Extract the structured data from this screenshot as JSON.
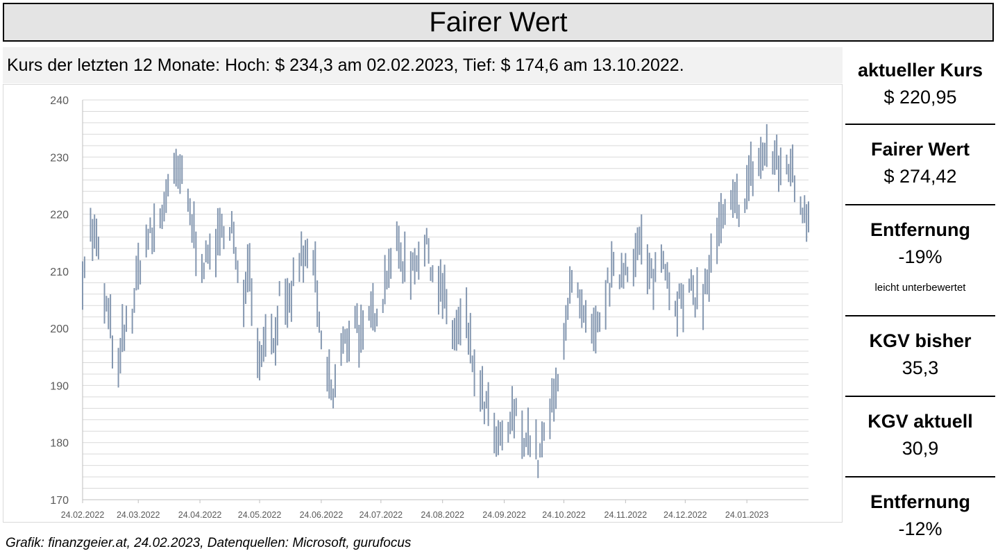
{
  "title": "Fairer Wert",
  "subtitle": "Kurs der letzten 12 Monate: Hoch: $ 234,3 am 02.02.2023, Tief: $ 174,6 am 13.10.2022.",
  "footer": "Grafik: finanzgeier.at, 24.02.2023, Datenquellen: Microsoft, gurufocus",
  "sidebar": {
    "current_price_label": "aktueller Kurs",
    "current_price_value": "$ 220,95",
    "fair_value_label": "Fairer Wert",
    "fair_value_value": "$ 274,42",
    "distance1_label": "Entfernung",
    "distance1_value": "-19%",
    "distance1_note": "leicht unterbewertet",
    "pe_trailing_label": "KGV bisher",
    "pe_trailing_value": "35,3",
    "pe_forward_label": "KGV aktuell",
    "pe_forward_value": "30,9",
    "distance2_label": "Entfernung",
    "distance2_value": "-12%"
  },
  "colors": {
    "bar": "#8497b0",
    "grid": "#d9d9d9",
    "axis": "#bfbfbf",
    "tick_text": "#595959",
    "title_bg": "#e4e4e4",
    "subtitle_bg": "#f2f2f2"
  },
  "chart_data": {
    "type": "bar",
    "subtype": "high-low range (daily)",
    "ylim": [
      170,
      240
    ],
    "y_ticks": [
      170,
      180,
      190,
      200,
      210,
      220,
      230,
      240
    ],
    "x_tick_labels": [
      "24.02.2022",
      "24.03.2022",
      "24.04.2022",
      "24.05.2022",
      "24.06.2022",
      "24.07.2022",
      "24.08.2022",
      "24.09.2022",
      "24.10.2022",
      "24.11.2022",
      "24.12.2022",
      "24.01.2023"
    ],
    "grid": "horizontal, every 2",
    "anchor_points": [
      [
        "24.02.2022",
        210
      ],
      [
        "28.02.2022",
        217
      ],
      [
        "03.03.2022",
        215
      ],
      [
        "07.03.2022",
        205
      ],
      [
        "10.03.2022",
        200
      ],
      [
        "14.03.2022",
        191
      ],
      [
        "16.03.2022",
        198
      ],
      [
        "21.03.2022",
        203
      ],
      [
        "25.03.2022",
        212
      ],
      [
        "29.03.2022",
        216
      ],
      [
        "31.03.2022",
        216
      ],
      [
        "05.04.2022",
        220
      ],
      [
        "07.04.2022",
        224
      ],
      [
        "11.04.2022",
        226
      ],
      [
        "14.04.2022",
        227
      ],
      [
        "19.04.2022",
        220
      ],
      [
        "22.04.2022",
        215
      ],
      [
        "27.04.2022",
        211
      ],
      [
        "30.04.2022",
        215
      ],
      [
        "04.05.2022",
        215
      ],
      [
        "07.05.2022",
        220
      ],
      [
        "10.05.2022",
        218
      ],
      [
        "13.05.2022",
        208
      ],
      [
        "16.05.2022",
        205
      ],
      [
        "18.05.2022",
        213
      ],
      [
        "20.05.2022",
        207
      ],
      [
        "24.05.2022",
        194
      ],
      [
        "27.05.2022",
        201
      ],
      [
        "31.05.2022",
        197
      ],
      [
        "03.06.2022",
        205
      ],
      [
        "07.06.2022",
        202
      ],
      [
        "10.06.2022",
        208
      ],
      [
        "13.06.2022",
        212
      ],
      [
        "17.06.2022",
        212
      ],
      [
        "20.06.2022",
        213
      ],
      [
        "23.06.2022",
        199
      ],
      [
        "27.06.2022",
        192
      ],
      [
        "30.06.2022",
        188
      ],
      [
        "04.07.2022",
        196
      ],
      [
        "07.07.2022",
        198
      ],
      [
        "11.07.2022",
        203
      ],
      [
        "13.07.2022",
        199
      ],
      [
        "16.07.2022",
        197
      ],
      [
        "19.07.2022",
        202
      ],
      [
        "22.07.2022",
        204
      ],
      [
        "25.07.2022",
        206
      ],
      [
        "28.07.2022",
        212
      ],
      [
        "31.07.2022",
        214
      ],
      [
        "03.08.2022",
        213
      ],
      [
        "06.08.2022",
        210
      ],
      [
        "08.08.2022",
        211
      ],
      [
        "11.08.2022",
        213
      ],
      [
        "14.08.2022",
        213
      ],
      [
        "17.08.2022",
        214
      ],
      [
        "19.08.2022",
        210
      ],
      [
        "22.08.2022",
        208
      ],
      [
        "25.08.2022",
        205
      ],
      [
        "27.08.2022",
        201
      ],
      [
        "30.08.2022",
        199
      ],
      [
        "02.09.2022",
        200
      ],
      [
        "05.09.2022",
        201
      ],
      [
        "07.09.2022",
        196
      ],
      [
        "09.09.2022",
        193
      ],
      [
        "12.09.2022",
        188
      ],
      [
        "15.09.2022",
        186
      ],
      [
        "18.09.2022",
        182
      ],
      [
        "21.09.2022",
        179
      ],
      [
        "24.09.2022",
        181
      ],
      [
        "27.09.2022",
        183
      ],
      [
        "29.09.2022",
        185
      ],
      [
        "02.10.2022",
        183
      ],
      [
        "05.10.2022",
        181
      ],
      [
        "08.10.2022",
        181
      ],
      [
        "11.10.2022",
        177
      ],
      [
        "13.10.2022",
        179
      ],
      [
        "16.10.2022",
        184
      ],
      [
        "19.10.2022",
        187
      ],
      [
        "21.10.2022",
        190
      ],
      [
        "24.10.2022",
        200
      ],
      [
        "27.10.2022",
        207
      ],
      [
        "30.10.2022",
        206
      ],
      [
        "02.11.2022",
        202
      ],
      [
        "05.11.2022",
        199
      ],
      [
        "08.11.2022",
        198
      ],
      [
        "11.11.2022",
        200
      ],
      [
        "14.11.2022",
        206
      ],
      [
        "17.11.2022",
        209
      ],
      [
        "20.11.2022",
        209
      ],
      [
        "23.11.2022",
        211
      ],
      [
        "26.11.2022",
        212
      ],
      [
        "29.11.2022",
        213
      ],
      [
        "02.12.2022",
        215
      ],
      [
        "05.12.2022",
        209
      ],
      [
        "08.12.2022",
        209
      ],
      [
        "11.12.2022",
        212
      ],
      [
        "14.12.2022",
        212
      ],
      [
        "17.12.2022",
        206
      ],
      [
        "20.12.2022",
        205
      ],
      [
        "23.12.2022",
        204
      ],
      [
        "26.12.2022",
        206
      ],
      [
        "29.12.2022",
        206
      ],
      [
        "02.01.2023",
        205
      ],
      [
        "05.01.2023",
        210
      ],
      [
        "08.01.2023",
        214
      ],
      [
        "11.01.2023",
        218
      ],
      [
        "14.01.2023",
        220
      ],
      [
        "17.01.2023",
        221
      ],
      [
        "20.01.2023",
        222
      ],
      [
        "23.01.2023",
        223
      ],
      [
        "26.01.2023",
        227
      ],
      [
        "29.01.2023",
        229
      ],
      [
        "01.02.2023",
        230
      ],
      [
        "03.02.2023",
        231
      ],
      [
        "06.02.2023",
        230
      ],
      [
        "09.02.2023",
        228
      ],
      [
        "12.02.2023",
        228
      ],
      [
        "15.02.2023",
        229
      ],
      [
        "17.02.2023",
        225
      ],
      [
        "20.02.2023",
        222
      ],
      [
        "24.02.2023",
        220
      ]
    ]
  }
}
